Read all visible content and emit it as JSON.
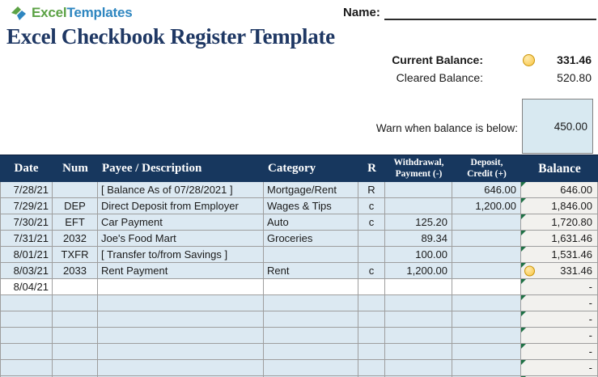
{
  "brand": {
    "icon": "diamond-chevron-icon",
    "name_excel": "Excel",
    "name_templates": "Templates",
    "green": "#5CA245",
    "blue": "#2E86C0"
  },
  "header": {
    "name_label": "Name:",
    "title": "Excel Checkbook Register Template",
    "title_color": "#1F3864"
  },
  "summary": {
    "current_balance_label": "Current Balance:",
    "current_balance_icon": "yellow-circle",
    "current_balance_value": "331.46",
    "cleared_balance_label": "Cleared Balance:",
    "cleared_balance_value": "520.80"
  },
  "warn": {
    "label": "Warn when balance is below:",
    "value": "450.00"
  },
  "table": {
    "header_bg": "#17375E",
    "row_bg": "#DCE9F2",
    "balance_col_bg": "#F2F1EE",
    "error_triangle_color": "#1E7145",
    "warn_icon_color": "#F9C440",
    "columns": [
      {
        "label": "Date"
      },
      {
        "label": "Num"
      },
      {
        "label": "Payee / Description"
      },
      {
        "label": "Category"
      },
      {
        "label": "R"
      },
      {
        "label": "Withdrawal,",
        "label2": "Payment (-)"
      },
      {
        "label": "Deposit,",
        "label2": "Credit (+)"
      },
      {
        "label": "Balance"
      }
    ],
    "rows": [
      {
        "date": "7/28/21",
        "num": "",
        "payee": "[ Balance As of 07/28/2021 ]",
        "category": "Mortgage/Rent",
        "r": "R",
        "withdrawal": "",
        "deposit": "646.00",
        "balance": "646.00",
        "triangle": true
      },
      {
        "date": "7/29/21",
        "num": "DEP",
        "payee": "Direct Deposit from Employer",
        "category": "Wages & Tips",
        "r": "c",
        "withdrawal": "",
        "deposit": "1,200.00",
        "balance": "1,846.00",
        "triangle": true
      },
      {
        "date": "7/30/21",
        "num": "EFT",
        "payee": "Car Payment",
        "category": "Auto",
        "r": "c",
        "withdrawal": "125.20",
        "deposit": "",
        "balance": "1,720.80",
        "triangle": true
      },
      {
        "date": "7/31/21",
        "num": "2032",
        "payee": "Joe's Food Mart",
        "category": "Groceries",
        "r": "",
        "withdrawal": "89.34",
        "deposit": "",
        "balance": "1,631.46",
        "triangle": true
      },
      {
        "date": "8/01/21",
        "num": "TXFR",
        "payee": "[ Transfer to/from Savings ]",
        "category": "",
        "r": "",
        "withdrawal": "100.00",
        "deposit": "",
        "balance": "1,531.46",
        "triangle": true
      },
      {
        "date": "8/03/21",
        "num": "2033",
        "payee": "Rent Payment",
        "category": "Rent",
        "r": "c",
        "withdrawal": "1,200.00",
        "deposit": "",
        "balance": "331.46",
        "triangle": true,
        "warn_icon": true
      },
      {
        "date": "8/04/21",
        "num": "",
        "payee": "",
        "category": "",
        "r": "",
        "withdrawal": "",
        "deposit": "",
        "balance": "-",
        "triangle": true,
        "white": true
      },
      {
        "date": "",
        "num": "",
        "payee": "",
        "category": "",
        "r": "",
        "withdrawal": "",
        "deposit": "",
        "balance": "-",
        "triangle": true
      },
      {
        "date": "",
        "num": "",
        "payee": "",
        "category": "",
        "r": "",
        "withdrawal": "",
        "deposit": "",
        "balance": "-",
        "triangle": true
      },
      {
        "date": "",
        "num": "",
        "payee": "",
        "category": "",
        "r": "",
        "withdrawal": "",
        "deposit": "",
        "balance": "-",
        "triangle": true
      },
      {
        "date": "",
        "num": "",
        "payee": "",
        "category": "",
        "r": "",
        "withdrawal": "",
        "deposit": "",
        "balance": "-",
        "triangle": true
      },
      {
        "date": "",
        "num": "",
        "payee": "",
        "category": "",
        "r": "",
        "withdrawal": "",
        "deposit": "",
        "balance": "-",
        "triangle": true
      },
      {
        "date": "",
        "num": "",
        "payee": "",
        "category": "",
        "r": "",
        "withdrawal": "",
        "deposit": "",
        "balance": "-",
        "triangle": true
      }
    ]
  }
}
